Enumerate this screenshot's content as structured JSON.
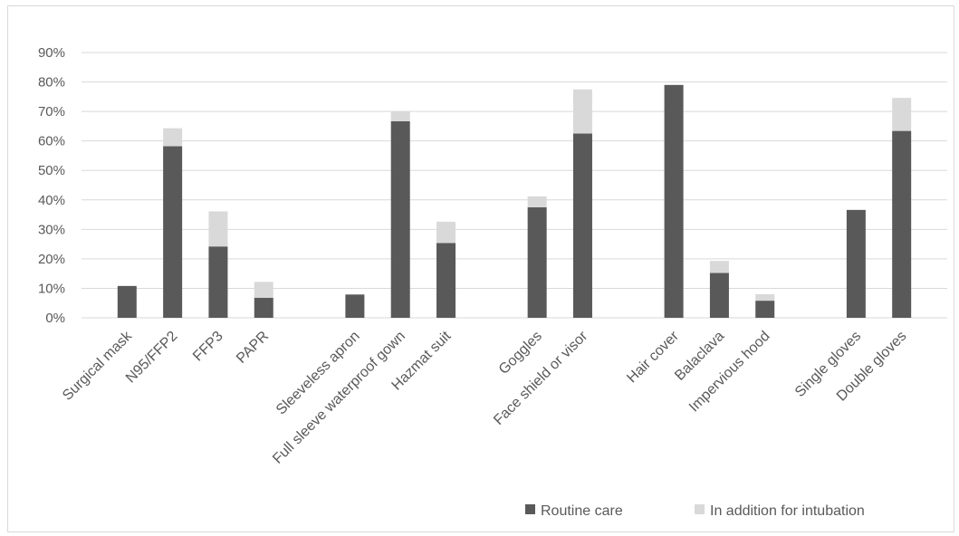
{
  "chart_data": {
    "type": "bar",
    "stacked": true,
    "title": "",
    "xlabel": "",
    "ylabel": "",
    "ylim": [
      0,
      90
    ],
    "y_ticks": [
      "0%",
      "10%",
      "20%",
      "30%",
      "40%",
      "50%",
      "60%",
      "70%",
      "80%",
      "90%"
    ],
    "grid": true,
    "legend_position": "bottom-right",
    "categories": [
      "Surgical mask",
      "N95/FFP2",
      "FFP3",
      "PAPR",
      "Sleeveless apron",
      "Full sleeve waterproof gown",
      "Hazmat suit",
      "Goggles",
      "Face shield or visor",
      "Hair cover",
      "Balaclava",
      "Impervious hood",
      "Single gloves",
      "Double gloves"
    ],
    "groups": [
      4,
      3,
      2,
      3,
      2
    ],
    "series": [
      {
        "name": "Routine care",
        "color": "#595959",
        "values": [
          10.8,
          58.2,
          24.2,
          6.8,
          7.9,
          66.7,
          25.4,
          37.5,
          62.5,
          79.0,
          15.2,
          5.8,
          36.6,
          63.4
        ]
      },
      {
        "name": "In addition for intubation",
        "color": "#d9d9d9",
        "values": [
          0,
          6.1,
          11.9,
          5.4,
          0,
          3.2,
          7.2,
          3.7,
          15.0,
          0,
          4.1,
          2.2,
          0,
          11.2
        ]
      }
    ]
  }
}
